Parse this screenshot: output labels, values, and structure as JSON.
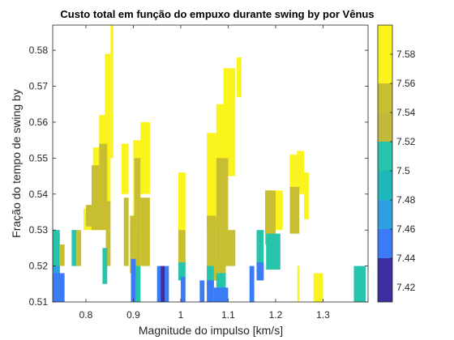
{
  "chart_data": {
    "type": "heatmap",
    "subtype": "filled-contour",
    "title": "Custo total em função do empuxo durante swing by por Vênus",
    "xlabel": "Magnitude do impulso [km/s]",
    "ylabel": "Fração do tempo de swing by",
    "xlim": [
      0.73,
      1.395
    ],
    "ylim": [
      0.51,
      0.587
    ],
    "xticks": [
      0.8,
      0.9,
      1,
      1.1,
      1.2,
      1.3
    ],
    "xtick_labels": [
      "0.8",
      "0.9",
      "1",
      "1.1",
      "1.2",
      "1.3"
    ],
    "yticks": [
      0.51,
      0.52,
      0.53,
      0.54,
      0.55,
      0.56,
      0.57,
      0.58
    ],
    "ytick_labels": [
      "0.51",
      "0.52",
      "0.53",
      "0.54",
      "0.55",
      "0.56",
      "0.57",
      "0.58"
    ],
    "grid": false,
    "colorbar": {
      "levels": [
        7.41,
        7.44,
        7.46,
        7.48,
        7.5,
        7.52,
        7.54,
        7.56,
        7.6
      ],
      "colors": [
        "#3a2ea0",
        "#3b7bf5",
        "#2e9fe0",
        "#1fb8b8",
        "#27c4ac",
        "#c3b93a",
        "#c7be31",
        "#fbf31c"
      ],
      "tick_labels": [
        "7.42",
        "7.44",
        "7.46",
        "7.48",
        "7.5",
        "7.52",
        "7.54",
        "7.56",
        "7.58"
      ],
      "tick_values": [
        7.42,
        7.44,
        7.46,
        7.48,
        7.5,
        7.52,
        7.54,
        7.56,
        7.58
      ]
    },
    "regions": [
      {
        "color": "#fbf31c",
        "x": [
          0.795,
          0.815
        ],
        "y": [
          0.53,
          0.536
        ]
      },
      {
        "color": "#fbf31c",
        "x": [
          0.815,
          0.83
        ],
        "y": [
          0.53,
          0.553
        ]
      },
      {
        "color": "#fbf31c",
        "x": [
          0.828,
          0.845
        ],
        "y": [
          0.53,
          0.562
        ]
      },
      {
        "color": "#fbf31c",
        "x": [
          0.84,
          0.852
        ],
        "y": [
          0.537,
          0.579
        ]
      },
      {
        "color": "#fbf31c",
        "x": [
          0.852,
          0.858
        ],
        "y": [
          0.55,
          0.587
        ]
      },
      {
        "color": "#c7be31",
        "x": [
          0.8,
          0.815
        ],
        "y": [
          0.531,
          0.537
        ]
      },
      {
        "color": "#c7be31",
        "x": [
          0.812,
          0.828
        ],
        "y": [
          0.53,
          0.548
        ]
      },
      {
        "color": "#c7be31",
        "x": [
          0.828,
          0.845
        ],
        "y": [
          0.53,
          0.554
        ]
      },
      {
        "color": "#c7be31",
        "x": [
          0.842,
          0.852
        ],
        "y": [
          0.52,
          0.538
        ]
      },
      {
        "color": "#fbf31c",
        "x": [
          0.875,
          0.89
        ],
        "y": [
          0.54,
          0.554
        ]
      },
      {
        "color": "#c7be31",
        "x": [
          0.88,
          0.89
        ],
        "y": [
          0.52,
          0.539
        ]
      },
      {
        "color": "#fbf31c",
        "x": [
          0.9,
          0.915
        ],
        "y": [
          0.53,
          0.555
        ]
      },
      {
        "color": "#fbf31c",
        "x": [
          0.915,
          0.935
        ],
        "y": [
          0.54,
          0.56
        ]
      },
      {
        "color": "#c7be31",
        "x": [
          0.893,
          0.902
        ],
        "y": [
          0.518,
          0.534
        ]
      },
      {
        "color": "#c7be31",
        "x": [
          0.902,
          0.915
        ],
        "y": [
          0.51,
          0.55
        ]
      },
      {
        "color": "#c7be31",
        "x": [
          0.915,
          0.935
        ],
        "y": [
          0.52,
          0.539
        ]
      },
      {
        "color": "#fbf31c",
        "x": [
          0.995,
          1.01
        ],
        "y": [
          0.53,
          0.546
        ]
      },
      {
        "color": "#c7be31",
        "x": [
          0.995,
          1.01
        ],
        "y": [
          0.52,
          0.53
        ]
      },
      {
        "color": "#27c4ac",
        "x": [
          0.995,
          1.01
        ],
        "y": [
          0.516,
          0.521
        ]
      },
      {
        "color": "#fbf31c",
        "x": [
          1.055,
          1.075
        ],
        "y": [
          0.53,
          0.557
        ]
      },
      {
        "color": "#fbf31c",
        "x": [
          1.075,
          1.09
        ],
        "y": [
          0.535,
          0.565
        ]
      },
      {
        "color": "#fbf31c",
        "x": [
          1.09,
          1.115
        ],
        "y": [
          0.545,
          0.575
        ]
      },
      {
        "color": "#fbf31c",
        "x": [
          1.118,
          1.128
        ],
        "y": [
          0.567,
          0.578
        ]
      },
      {
        "color": "#c7be31",
        "x": [
          1.055,
          1.075
        ],
        "y": [
          0.516,
          0.534
        ]
      },
      {
        "color": "#c7be31",
        "x": [
          1.075,
          1.1
        ],
        "y": [
          0.52,
          0.55
        ]
      },
      {
        "color": "#c7be31",
        "x": [
          1.1,
          1.115
        ],
        "y": [
          0.52,
          0.53
        ]
      },
      {
        "color": "#fbf31c",
        "x": [
          1.18,
          1.2
        ],
        "y": [
          0.535,
          0.541
        ]
      },
      {
        "color": "#fbf31c",
        "x": [
          1.2,
          1.215
        ],
        "y": [
          0.53,
          0.541
        ]
      },
      {
        "color": "#c7be31",
        "x": [
          1.178,
          1.2
        ],
        "y": [
          0.526,
          0.541
        ]
      },
      {
        "color": "#fbf31c",
        "x": [
          1.23,
          1.245
        ],
        "y": [
          0.537,
          0.551
        ]
      },
      {
        "color": "#fbf31c",
        "x": [
          1.245,
          1.26
        ],
        "y": [
          0.54,
          0.552
        ]
      },
      {
        "color": "#fbf31c",
        "x": [
          1.26,
          1.27
        ],
        "y": [
          0.533,
          0.546
        ]
      },
      {
        "color": "#c7be31",
        "x": [
          1.23,
          1.25
        ],
        "y": [
          0.529,
          0.542
        ]
      },
      {
        "color": "#fbf31c",
        "x": [
          1.246,
          1.25
        ],
        "y": [
          0.51,
          0.52
        ]
      },
      {
        "color": "#27c4ac",
        "x": [
          0.73,
          0.745
        ],
        "y": [
          0.515,
          0.53
        ]
      },
      {
        "color": "#c7be31",
        "x": [
          0.745,
          0.755
        ],
        "y": [
          0.52,
          0.526
        ]
      },
      {
        "color": "#2e9fe0",
        "x": [
          0.73,
          0.745
        ],
        "y": [
          0.51,
          0.52
        ]
      },
      {
        "color": "#3b7bf5",
        "x": [
          0.73,
          0.755
        ],
        "y": [
          0.51,
          0.518
        ]
      },
      {
        "color": "#27c4ac",
        "x": [
          0.77,
          0.78
        ],
        "y": [
          0.52,
          0.53
        ]
      },
      {
        "color": "#c7be31",
        "x": [
          0.78,
          0.79
        ],
        "y": [
          0.52,
          0.53
        ]
      },
      {
        "color": "#27c4ac",
        "x": [
          0.835,
          0.845
        ],
        "y": [
          0.515,
          0.525
        ]
      },
      {
        "color": "#3b7bf5",
        "x": [
          0.895,
          0.905
        ],
        "y": [
          0.51,
          0.522
        ]
      },
      {
        "color": "#27c4ac",
        "x": [
          0.905,
          0.915
        ],
        "y": [
          0.51,
          0.52
        ]
      },
      {
        "color": "#3b7bf5",
        "x": [
          0.95,
          0.975
        ],
        "y": [
          0.51,
          0.52
        ]
      },
      {
        "color": "#3a2ea0",
        "x": [
          0.958,
          0.966
        ],
        "y": [
          0.51,
          0.52
        ]
      },
      {
        "color": "#3b7bf5",
        "x": [
          1.0,
          1.01
        ],
        "y": [
          0.51,
          0.517
        ]
      },
      {
        "color": "#3b7bf5",
        "x": [
          1.04,
          1.05
        ],
        "y": [
          0.51,
          0.516
        ]
      },
      {
        "color": "#27c4ac",
        "x": [
          1.055,
          1.07
        ],
        "y": [
          0.514,
          0.52
        ]
      },
      {
        "color": "#3b7bf5",
        "x": [
          1.055,
          1.07
        ],
        "y": [
          0.51,
          0.516
        ]
      },
      {
        "color": "#c7be31",
        "x": [
          1.07,
          1.095
        ],
        "y": [
          0.516,
          0.521
        ]
      },
      {
        "color": "#27c4ac",
        "x": [
          1.075,
          1.095
        ],
        "y": [
          0.513,
          0.518
        ]
      },
      {
        "color": "#3b7bf5",
        "x": [
          1.07,
          1.1
        ],
        "y": [
          0.51,
          0.514
        ]
      },
      {
        "color": "#3b7bf5",
        "x": [
          1.145,
          1.155
        ],
        "y": [
          0.51,
          0.52
        ]
      },
      {
        "color": "#27c4ac",
        "x": [
          1.16,
          1.175
        ],
        "y": [
          0.518,
          0.53
        ]
      },
      {
        "color": "#27c4ac",
        "x": [
          1.18,
          1.21
        ],
        "y": [
          0.519,
          0.529
        ]
      },
      {
        "color": "#3b7bf5",
        "x": [
          1.16,
          1.175
        ],
        "y": [
          0.516,
          0.521
        ]
      },
      {
        "color": "#27c4ac",
        "x": [
          1.365,
          1.39
        ],
        "y": [
          0.51,
          0.52
        ]
      },
      {
        "color": "#fbf31c",
        "x": [
          1.28,
          1.3
        ],
        "y": [
          0.51,
          0.518
        ]
      }
    ]
  }
}
